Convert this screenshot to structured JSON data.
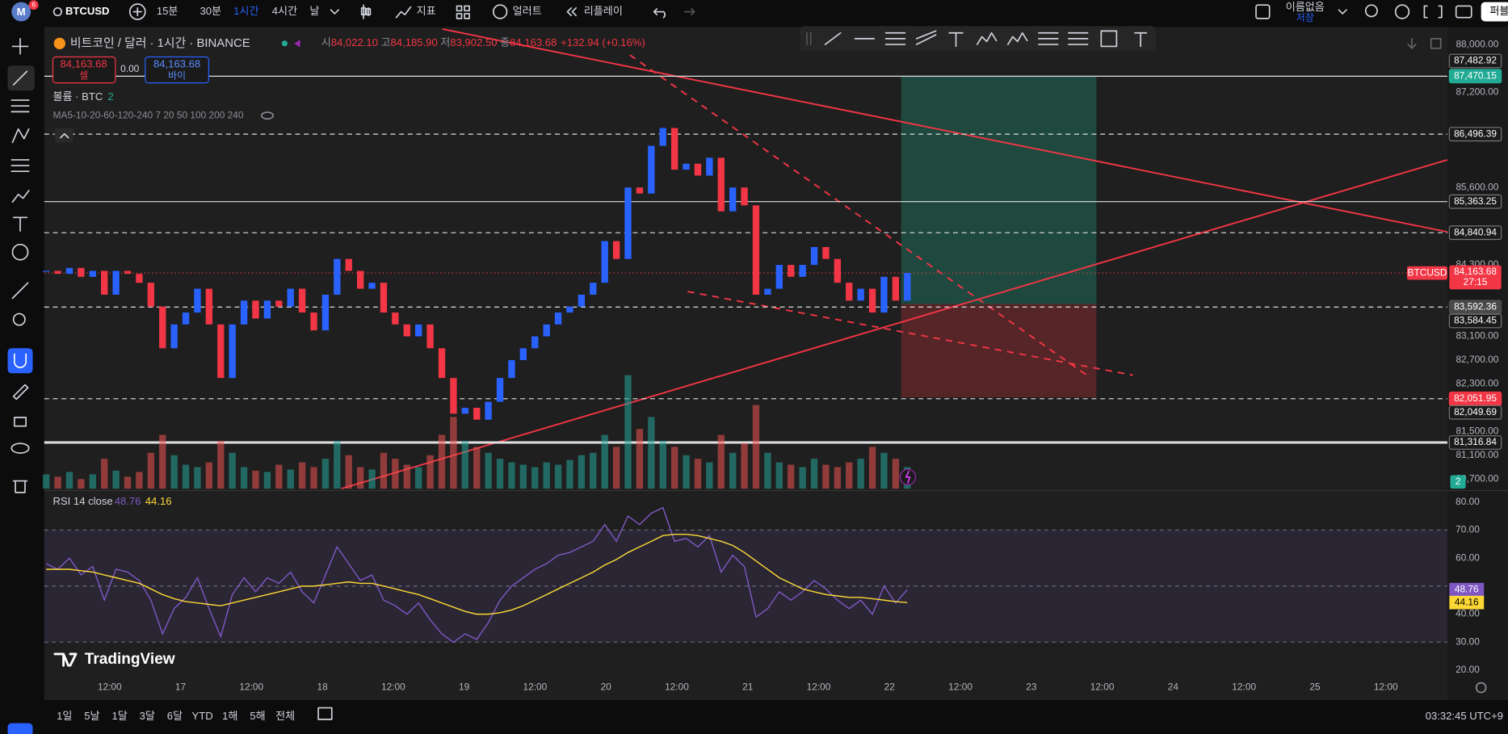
{
  "top_bar": {
    "notifications": "6",
    "symbol": "BTCUSD",
    "intervals": [
      "15분",
      "30분",
      "1시간",
      "4시간",
      "날"
    ],
    "indicators": "지표",
    "alerts": "얼러트",
    "replay": "리플레이",
    "layout_name": "이름없음",
    "save": "저장",
    "publish": "퍼블"
  },
  "legend": {
    "title": "비트코인 / 달러 · 1시간 · BINANCE",
    "ohlc": [
      {
        "label": "시",
        "value": "84,022.10"
      },
      {
        "label": "고",
        "value": "84,185.90"
      },
      {
        "label": "저",
        "value": "83,902.50"
      },
      {
        "label": "종",
        "value": "84,163.68"
      }
    ],
    "change": "+132.94 (+0.16%)",
    "sell": "셀",
    "spread": "0.00",
    "buy": "바이",
    "volume_label": "볼륨 · BTC",
    "volume_badge": "2",
    "ma_label": "MA5-10-20-60-120-240 7 20 50 100 200 240"
  },
  "price_chart": {
    "ylim": [
      80542,
      88262
    ],
    "yticks": [
      {
        "value": 88000,
        "label": "88,000.00"
      },
      {
        "value": 87200,
        "label": "87,200.00"
      },
      {
        "value": 85600,
        "label": "85,600.00"
      },
      {
        "value": 84300,
        "label": "84,300.00"
      },
      {
        "value": 83100,
        "label": "83,100.00"
      },
      {
        "value": 82700,
        "label": "82,700.00"
      },
      {
        "value": 82300,
        "label": "82,300.00"
      },
      {
        "value": 81500,
        "label": "81,500.00"
      },
      {
        "value": 81100,
        "label": "81,100.00"
      },
      {
        "value": 80700,
        "label": "80,700.00"
      }
    ],
    "levels": [
      {
        "value": 87482.92,
        "label": "87,482.92",
        "line": "none",
        "color": "#1b1b1b"
      },
      {
        "value": 87470.15,
        "label": "87,470.15",
        "line": "solid",
        "color": "#22ab94"
      },
      {
        "value": 86496.39,
        "label": "86,496.39",
        "line": "dashed",
        "color": "#1b1b1b"
      },
      {
        "value": 85363.25,
        "label": "85,363.25",
        "line": "solid",
        "color": "#1b1b1b"
      },
      {
        "value": 84840.94,
        "label": "84,840.94",
        "line": "dashed",
        "color": "#1b1b1b"
      },
      {
        "value": 83592.36,
        "label": "83,592.36",
        "line": "dashed",
        "color": "#4a4a4a"
      },
      {
        "value": 83584.45,
        "label": "83,584.45",
        "line": "none",
        "color": "#1b1b1b"
      },
      {
        "value": 82051.95,
        "label": "82,051.95",
        "line": "dashed",
        "color": "#f23645"
      },
      {
        "value": 82049.69,
        "label": "82,049.69",
        "line": "none",
        "color": "#1b1b1b"
      },
      {
        "value": 81316.84,
        "label": "81,316.84",
        "line": "thick",
        "color": "#1b1b1b"
      }
    ],
    "last_symbol": "BTCUSD",
    "last_label": "84,163.68",
    "countdown": "27:15",
    "up_color": "#2962ff",
    "down_color": "#f23645",
    "volume_up_color": "#26a69a",
    "volume_down_color": "#ef5350",
    "close": [
      84200,
      84150,
      84250,
      84100,
      84200,
      83800,
      84200,
      84150,
      84000,
      83600,
      82900,
      83300,
      83500,
      83900,
      83300,
      82400,
      83300,
      83700,
      83400,
      83700,
      83600,
      83900,
      83500,
      83200,
      83800,
      84400,
      84200,
      83900,
      84000,
      83500,
      83300,
      83100,
      83300,
      82900,
      82400,
      81800,
      81900,
      81700,
      82000,
      82400,
      82700,
      82900,
      83100,
      83300,
      83500,
      83600,
      83800,
      84000,
      84700,
      84400,
      85600,
      85500,
      86300,
      86600,
      85900,
      86000,
      85800,
      86100,
      85200,
      85600,
      85300,
      83800,
      83900,
      84300,
      84100,
      84300,
      84600,
      84400,
      84000,
      83700,
      83900,
      83500,
      84100,
      83700,
      84163.68
    ],
    "volume": [
      12,
      10,
      14,
      8,
      12,
      25,
      15,
      10,
      14,
      30,
      45,
      28,
      20,
      18,
      22,
      40,
      30,
      18,
      15,
      14,
      20,
      16,
      22,
      18,
      25,
      40,
      28,
      18,
      16,
      30,
      25,
      20,
      18,
      28,
      45,
      60,
      40,
      35,
      30,
      25,
      22,
      20,
      18,
      22,
      20,
      24,
      28,
      30,
      45,
      35,
      95,
      50,
      60,
      40,
      35,
      28,
      25,
      22,
      45,
      30,
      38,
      70,
      30,
      22,
      20,
      18,
      25,
      20,
      18,
      22,
      25,
      35,
      30,
      25,
      18
    ]
  },
  "rsi": {
    "title": "RSI 14 close",
    "ylim": [
      16.2,
      83.4
    ],
    "yticks": [
      {
        "value": 80,
        "label": "80.00"
      },
      {
        "value": 70,
        "label": "70.00"
      },
      {
        "value": 60,
        "label": "60.00"
      },
      {
        "value": 40,
        "label": "40.00"
      },
      {
        "value": 30,
        "label": "30.00"
      },
      {
        "value": 20,
        "label": "20.00"
      }
    ],
    "bands": [
      70,
      50,
      30
    ],
    "color": "#7e57c2",
    "ma_color": "#fdd835",
    "rsi": [
      58,
      56,
      60,
      54,
      57,
      45,
      56,
      55,
      52,
      45,
      33,
      42,
      46,
      53,
      42,
      32,
      47,
      53,
      48,
      53,
      51,
      55,
      48,
      44,
      54,
      64,
      58,
      52,
      54,
      45,
      43,
      40,
      44,
      38,
      33,
      30,
      33,
      31,
      37,
      45,
      50,
      53,
      56,
      58,
      61,
      62,
      64,
      66,
      72,
      66,
      75,
      72,
      76,
      78,
      66,
      67,
      64,
      68,
      55,
      61,
      57,
      39,
      42,
      48,
      45,
      48,
      52,
      49,
      45,
      42,
      45,
      40,
      50,
      44,
      48.76
    ],
    "ma": [
      56,
      56,
      56,
      55.5,
      55,
      54,
      53,
      52,
      51,
      49,
      47,
      45.5,
      44.5,
      44,
      43.5,
      43,
      44,
      45,
      46,
      47,
      48,
      49,
      50,
      50,
      50.5,
      51,
      51.5,
      51,
      51,
      50,
      49,
      48,
      47,
      45.5,
      44,
      42.5,
      41,
      40,
      40,
      40.5,
      41.5,
      43,
      45,
      47,
      49,
      51,
      53,
      55,
      57.5,
      59.5,
      62,
      64,
      66,
      68,
      68.5,
      68.5,
      68,
      67,
      66,
      64.5,
      62,
      59,
      56,
      53,
      51,
      49,
      48,
      47,
      46.5,
      46,
      46,
      45.5,
      45,
      44.5,
      44.16
    ]
  },
  "time_axis": {
    "labels": [
      "12:00",
      "17",
      "12:00",
      "18",
      "12:00",
      "19",
      "12:00",
      "20",
      "12:00",
      "21",
      "12:00",
      "22",
      "12:00",
      "23",
      "12:00",
      "24",
      "12:00",
      "25",
      "12:00"
    ]
  },
  "watermark": "TradingView",
  "bottom_bar": {
    "ranges": [
      "1일",
      "5날",
      "1달",
      "3달",
      "6달",
      "YTD",
      "1해",
      "5해",
      "전체"
    ],
    "clock": "03:32:45 UTC+9"
  }
}
